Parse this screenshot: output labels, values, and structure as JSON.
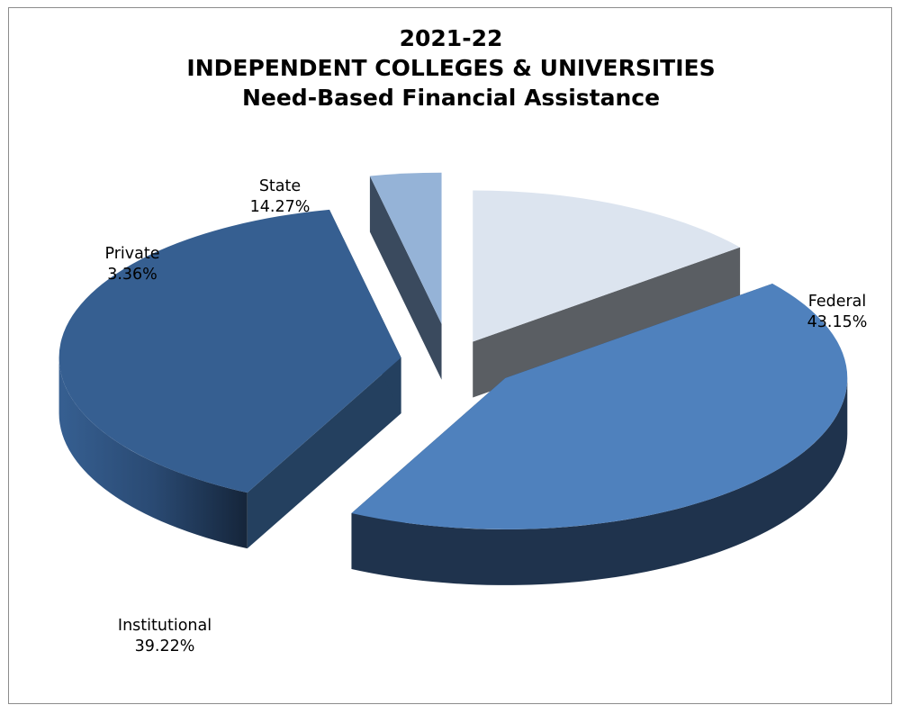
{
  "chart_data": {
    "type": "pie",
    "title_lines": [
      "2021-22",
      "INDEPENDENT COLLEGES & UNIVERSITIES",
      "Need-Based Financial Assistance"
    ],
    "slices": [
      {
        "name": "State",
        "value": 14.27,
        "value_label": "14.27%",
        "color": "#dce4ef",
        "side_color": "#5a5e63"
      },
      {
        "name": "Federal",
        "value": 43.15,
        "value_label": "43.15%",
        "color": "#4f81bd",
        "side_color": "#1f334d"
      },
      {
        "name": "Institutional",
        "value": 39.22,
        "value_label": "39.22%",
        "color": "#365f91",
        "side_color": "#24405f"
      },
      {
        "name": "Private",
        "value": 3.36,
        "value_label": "3.36%",
        "color": "#95b3d7",
        "side_color": "#3a4a5e"
      }
    ],
    "exploded": true,
    "three_d": true,
    "legend": "none",
    "data_labels": "category and percent"
  }
}
